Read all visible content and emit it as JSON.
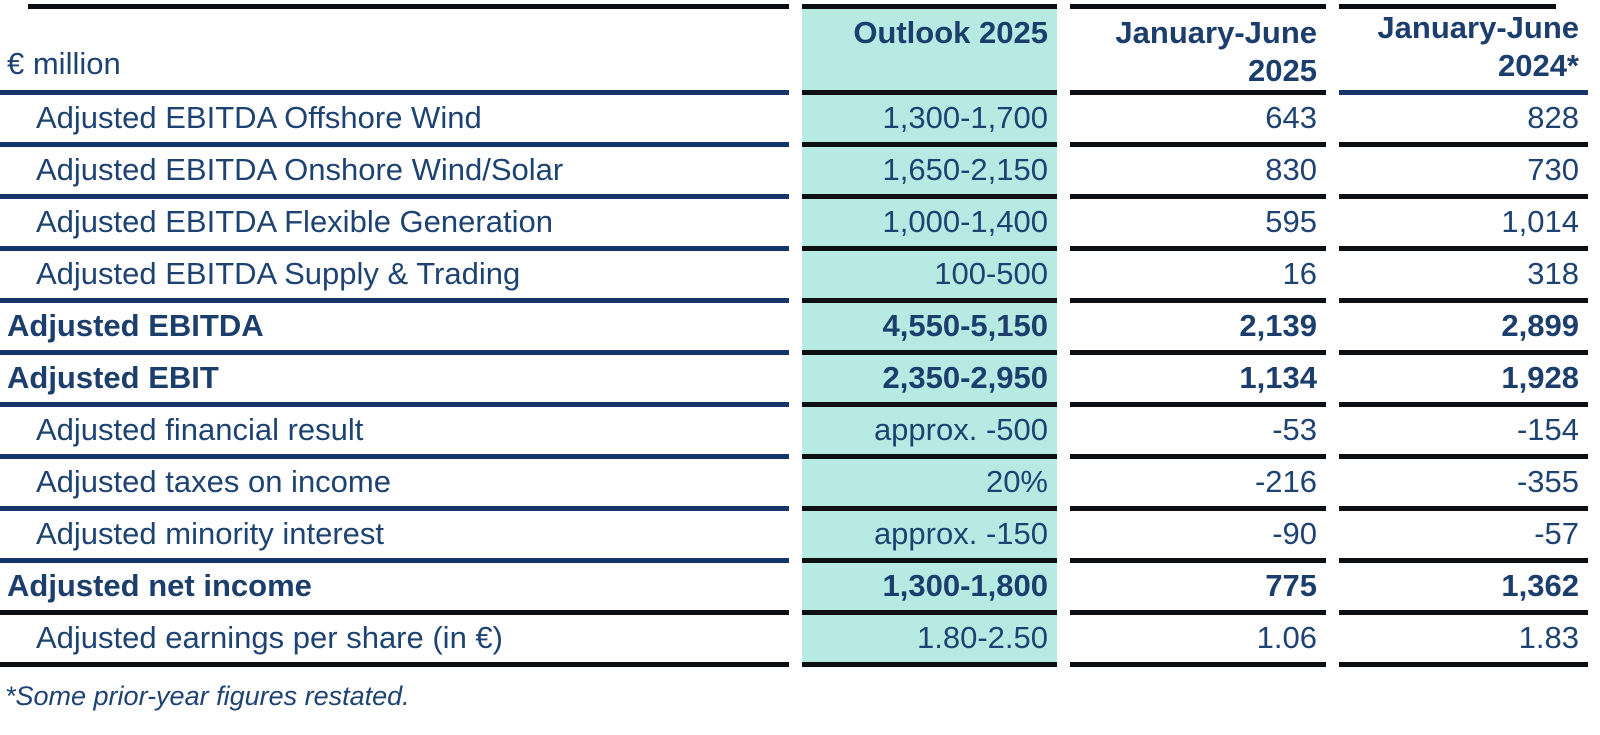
{
  "table": {
    "unit_label": "€ million",
    "header": {
      "outlook": "Outlook 2025",
      "h1_2025_line1": "January-June",
      "h1_2025_line2": "2025",
      "h1_2024_line1": "January-June",
      "h1_2024_line2": "2024*"
    },
    "rows": [
      {
        "label": "Adjusted EBITDA Offshore Wind",
        "outlook": "1,300-1,700",
        "h1_2025": "643",
        "h1_2024": "828"
      },
      {
        "label": "Adjusted EBITDA Onshore Wind/Solar",
        "outlook": "1,650-2,150",
        "h1_2025": "830",
        "h1_2024": "730"
      },
      {
        "label": "Adjusted EBITDA Flexible Generation",
        "outlook": "1,000-1,400",
        "h1_2025": "595",
        "h1_2024": "1,014"
      },
      {
        "label": "Adjusted EBITDA Supply & Trading",
        "outlook": "100-500",
        "h1_2025": "16",
        "h1_2024": "318"
      },
      {
        "label": "Adjusted EBITDA",
        "outlook": "4,550-5,150",
        "h1_2025": "2,139",
        "h1_2024": "2,899"
      },
      {
        "label": "Adjusted EBIT",
        "outlook": "2,350-2,950",
        "h1_2025": "1,134",
        "h1_2024": "1,928"
      },
      {
        "label": "Adjusted financial result",
        "outlook": "approx. -500",
        "h1_2025": "-53",
        "h1_2024": "-154"
      },
      {
        "label": "Adjusted taxes on income",
        "outlook": "20%",
        "h1_2025": "-216",
        "h1_2024": "-355"
      },
      {
        "label": "Adjusted minority interest",
        "outlook": "approx. -150",
        "h1_2025": "-90",
        "h1_2024": "-57"
      },
      {
        "label": "Adjusted net income",
        "outlook": "1,300-1,800",
        "h1_2025": "775",
        "h1_2024": "1,362"
      },
      {
        "label": "Adjusted earnings per share (in €)",
        "outlook": "1.80-2.50",
        "h1_2025": "1.06",
        "h1_2024": "1.83"
      }
    ]
  },
  "footnote": "*Some prior-year figures restated.",
  "colors": {
    "text_navy": "#1e4372",
    "rule_navy": "#16356a",
    "rule_black": "#0c0f13",
    "highlight_teal": "#b7eae3"
  }
}
